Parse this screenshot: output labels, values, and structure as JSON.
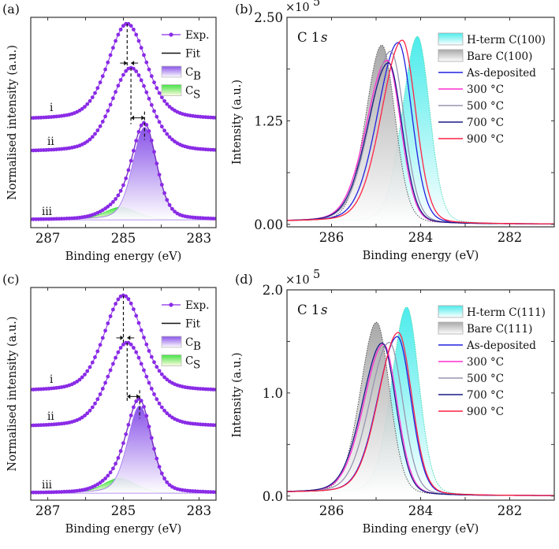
{
  "chart_data": [
    {
      "panel": "(a)",
      "type": "line",
      "xlabel": "Binding energy (eV)",
      "ylabel": "Normalised intensity (a.u.)",
      "xlim": [
        287.45,
        282.55
      ],
      "x_reversed": true,
      "ylim": [
        0,
        1
      ],
      "xticks": [
        287,
        285,
        283
      ],
      "grid": false,
      "legend_placement": "top-right",
      "legend": [
        {
          "text": "Exp.",
          "sub": "",
          "kind": "exp"
        },
        {
          "text": "Fit",
          "sub": "",
          "kind": "fit"
        },
        {
          "text": "C",
          "sub": "B",
          "kind": "cb"
        },
        {
          "text": "C",
          "sub": "S",
          "kind": "cs"
        }
      ],
      "colors": {
        "exp": "#8a2be6",
        "fit": "#111111",
        "cb": "#7a3ee6",
        "cs": "#2fe02f"
      },
      "spectra": [
        {
          "name": "i",
          "peak_eV": 284.9,
          "peak_height": 0.97,
          "baseline": 0.513,
          "fwhm_eV": 1.2
        },
        {
          "name": "ii",
          "peak_eV": 284.8,
          "peak_height": 0.76,
          "baseline": 0.36,
          "fwhm_eV": 1.2
        },
        {
          "name": "iii",
          "baseline": 0.037,
          "components": [
            {
              "name": "C_B",
              "peak_eV": 284.44,
              "amplitude": 0.44,
              "fwhm_eV": 0.75
            },
            {
              "name": "C_S",
              "peak_eV": 285.07,
              "amplitude": 0.06,
              "fwhm_eV": 1.0
            }
          ]
        }
      ]
    },
    {
      "panel": "(b)",
      "type": "line",
      "xlabel": "Binding energy (eV)",
      "ylabel": "Intensity (a.u.)",
      "y_multiplier": {
        "base": "×10",
        "exp": "5"
      },
      "annotation": {
        "main": "C 1",
        "italic": "s"
      },
      "xlim": [
        287,
        281
      ],
      "x_reversed": true,
      "ylim": [
        -0.03,
        2.5
      ],
      "xticks": [
        286,
        284,
        282
      ],
      "yticks": [
        {
          "v": 0,
          "label": "0.00"
        },
        {
          "v": 1.25,
          "label": "1.25"
        },
        {
          "v": 2.5,
          "label": "2.50"
        }
      ],
      "grid": false,
      "legend_placement": "top-right",
      "series": [
        {
          "name": "H-term C(100)",
          "style": "fill",
          "color": "#2ee8e8",
          "peak_eV": 284.07,
          "peak_height": 2.26,
          "fwhm_high_eV": 0.8,
          "fwhm_low_eV": 0.65
        },
        {
          "name": "Bare C(100)",
          "style": "fill",
          "color": "#9a9a9a",
          "peak_eV": 284.87,
          "peak_height": 2.14,
          "fwhm_high_eV": 0.85,
          "fwhm_low_eV": 0.7
        },
        {
          "name": "As-deposited",
          "style": "line",
          "color": "#2020e0",
          "peak_eV": 284.5,
          "peak_height": 2.18,
          "fwhm_high_eV": 1.1,
          "fwhm_low_eV": 0.72
        },
        {
          "name": "300 °C",
          "style": "line",
          "color": "#ff2fd0",
          "peak_eV": 284.75,
          "peak_height": 1.96,
          "fwhm_high_eV": 1.1,
          "fwhm_low_eV": 0.72
        },
        {
          "name": "500 °C",
          "style": "line",
          "color": "#9696b0",
          "peak_eV": 284.67,
          "peak_height": 2.07,
          "fwhm_high_eV": 1.1,
          "fwhm_low_eV": 0.72
        },
        {
          "name": "700 °C",
          "style": "line",
          "color": "#1a1a86",
          "peak_eV": 284.72,
          "peak_height": 1.93,
          "fwhm_high_eV": 1.1,
          "fwhm_low_eV": 0.72
        },
        {
          "name": "900 °C",
          "style": "line",
          "color": "#ff2244",
          "peak_eV": 284.41,
          "peak_height": 2.21,
          "fwhm_high_eV": 1.1,
          "fwhm_low_eV": 0.72
        }
      ]
    },
    {
      "panel": "(c)",
      "type": "line",
      "xlabel": "Binding energy (eV)",
      "ylabel": "Normalised intensity (a.u.)",
      "xlim": [
        287.45,
        282.55
      ],
      "x_reversed": true,
      "ylim": [
        0,
        1
      ],
      "xticks": [
        287,
        285,
        283
      ],
      "grid": false,
      "legend_placement": "top-right",
      "legend": [
        {
          "text": "Exp.",
          "sub": "",
          "kind": "exp"
        },
        {
          "text": "Fit",
          "sub": "",
          "kind": "fit"
        },
        {
          "text": "C",
          "sub": "B",
          "kind": "cb"
        },
        {
          "text": "C",
          "sub": "S",
          "kind": "cs"
        }
      ],
      "colors": {
        "exp": "#8a2be6",
        "fit": "#111111",
        "cb": "#7a3ee6",
        "cs": "#2fe02f"
      },
      "spectra": [
        {
          "name": "i",
          "peak_eV": 285.0,
          "peak_height": 0.963,
          "baseline": 0.511,
          "fwhm_eV": 1.2
        },
        {
          "name": "ii",
          "peak_eV": 284.9,
          "peak_height": 0.741,
          "baseline": 0.344,
          "fwhm_eV": 1.2
        },
        {
          "name": "iii",
          "baseline": 0.033,
          "components": [
            {
              "name": "C_B",
              "peak_eV": 284.57,
              "amplitude": 0.41,
              "fwhm_eV": 0.75
            },
            {
              "name": "C_S",
              "peak_eV": 285.1,
              "amplitude": 0.07,
              "fwhm_eV": 1.0
            }
          ]
        }
      ]
    },
    {
      "panel": "(d)",
      "type": "line",
      "xlabel": "Binding energy (eV)",
      "ylabel": "Intensity (a.u.)",
      "y_multiplier": {
        "base": "×10",
        "exp": "5"
      },
      "annotation": {
        "main": "C 1",
        "italic": "s"
      },
      "xlim": [
        287,
        281
      ],
      "x_reversed": true,
      "ylim": [
        -0.04,
        2.0
      ],
      "xticks": [
        286,
        284,
        282
      ],
      "yticks": [
        {
          "v": 0,
          "label": "0.0"
        },
        {
          "v": 1.0,
          "label": "1.0"
        },
        {
          "v": 2.0,
          "label": "2.0"
        }
      ],
      "grid": false,
      "legend_placement": "top-right",
      "series": [
        {
          "name": "H-term C(111)",
          "style": "fill",
          "color": "#2ee8e8",
          "peak_eV": 284.31,
          "peak_height": 1.82,
          "fwhm_high_eV": 0.8,
          "fwhm_low_eV": 0.65
        },
        {
          "name": "Bare C(111)",
          "style": "fill",
          "color": "#9a9a9a",
          "peak_eV": 284.99,
          "peak_height": 1.66,
          "fwhm_high_eV": 0.85,
          "fwhm_low_eV": 0.7
        },
        {
          "name": "As-deposited",
          "style": "line",
          "color": "#2020e0",
          "peak_eV": 284.52,
          "peak_height": 1.53,
          "fwhm_high_eV": 1.05,
          "fwhm_low_eV": 0.72
        },
        {
          "name": "300 °C",
          "style": "line",
          "color": "#ff2fd0",
          "peak_eV": 284.83,
          "peak_height": 1.45,
          "fwhm_high_eV": 1.05,
          "fwhm_low_eV": 0.72
        },
        {
          "name": "500 °C",
          "style": "line",
          "color": "#9696b0",
          "peak_eV": 284.7,
          "peak_height": 1.47,
          "fwhm_high_eV": 1.05,
          "fwhm_low_eV": 0.72
        },
        {
          "name": "700 °C",
          "style": "line",
          "color": "#1a1a86",
          "peak_eV": 284.86,
          "peak_height": 1.46,
          "fwhm_high_eV": 1.05,
          "fwhm_low_eV": 0.72
        },
        {
          "name": "900 °C",
          "style": "line",
          "color": "#ff2244",
          "peak_eV": 284.5,
          "peak_height": 1.57,
          "fwhm_high_eV": 1.05,
          "fwhm_low_eV": 0.72
        }
      ]
    }
  ]
}
